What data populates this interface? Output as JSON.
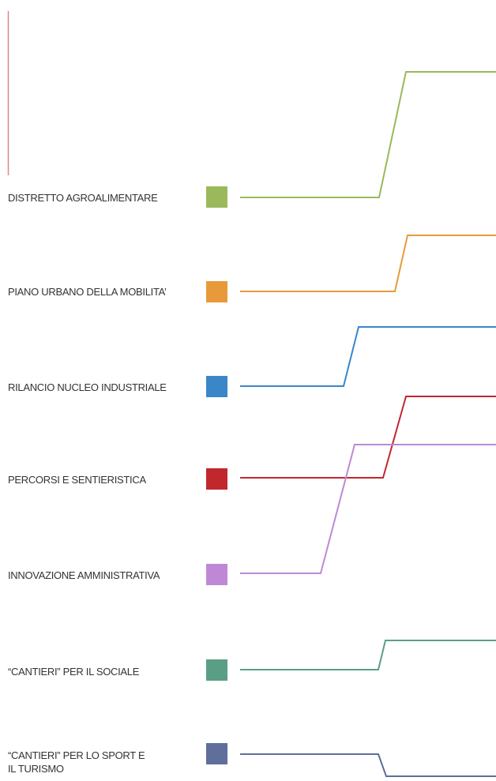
{
  "legend": {
    "items": [
      {
        "id": "distretto",
        "label": "DISTRETTO AGROALIMENTARE",
        "color": "#9bb95a"
      },
      {
        "id": "piano",
        "label": "PIANO URBANO DELLA MOBILITA’",
        "color": "#e89a3b"
      },
      {
        "id": "rilancio",
        "label": "RILANCIO NUCLEO INDUSTRIALE",
        "color": "#3a86c8"
      },
      {
        "id": "percorsi",
        "label": "PERCORSI E SENTIERISTICA",
        "color": "#c0282d"
      },
      {
        "id": "innovazione",
        "label": "INNOVAZIONE AMMINISTRATIVA",
        "color": "#bf88d6"
      },
      {
        "id": "cantieri-sociale",
        "label": "“CANTIERI” PER IL SOCIALE",
        "color": "#5a9e86"
      },
      {
        "id": "cantieri-sport",
        "label_line1": "“CANTIERI” PER LO SPORT E",
        "label_line2": "IL TURISMO",
        "color": "#5f6e9a"
      }
    ]
  },
  "accent_line_color": "#d9868a"
}
